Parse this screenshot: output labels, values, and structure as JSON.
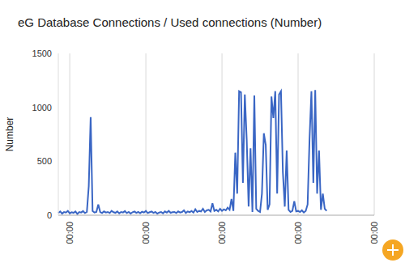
{
  "chart_data": {
    "type": "line",
    "title": "eG Database Connections / Used connections (Number)",
    "y_label": "Number",
    "color": "#3a66c4",
    "grid": true,
    "ylim": [
      0,
      1500
    ],
    "yticks": [
      0,
      500,
      1000,
      1500
    ],
    "categories": [
      null,
      null,
      null,
      null,
      null,
      null,
      "00:00",
      null,
      null,
      null,
      null,
      null,
      null,
      null,
      null,
      null,
      null,
      null,
      null,
      null,
      null,
      null,
      null,
      null,
      null,
      null,
      null,
      null,
      null,
      null,
      null,
      null,
      null,
      null,
      null,
      null,
      null,
      null,
      null,
      null,
      null,
      null,
      null,
      null,
      null,
      null,
      "00:00",
      null,
      null,
      null,
      null,
      null,
      null,
      null,
      null,
      null,
      null,
      null,
      null,
      null,
      null,
      null,
      null,
      null,
      null,
      null,
      null,
      null,
      null,
      null,
      null,
      null,
      null,
      null,
      null,
      null,
      null,
      null,
      null,
      null,
      null,
      null,
      null,
      null,
      null,
      null,
      "00:00",
      null,
      null,
      null,
      null,
      null,
      null,
      null,
      null,
      null,
      null,
      null,
      null,
      null,
      null,
      null,
      null,
      null,
      null,
      null,
      null,
      null,
      null,
      null,
      null,
      null,
      null,
      null,
      null,
      null,
      null,
      null,
      null,
      null,
      null,
      null,
      null,
      null,
      null,
      null,
      "00:00",
      null,
      null,
      null,
      null,
      null,
      null,
      null,
      null,
      null,
      null,
      null,
      null,
      null,
      null,
      null,
      null,
      null,
      null,
      null,
      null,
      null,
      null,
      null,
      null,
      null,
      null,
      null,
      null,
      null,
      null,
      null,
      null,
      null,
      null,
      null,
      null,
      null,
      null,
      null,
      "00:00"
    ],
    "values": [
      20,
      35,
      15,
      30,
      25,
      40,
      18,
      28,
      22,
      35,
      12,
      30,
      25,
      38,
      20,
      30,
      270,
      910,
      40,
      25,
      30,
      100,
      30,
      20,
      35,
      25,
      30,
      20,
      40,
      28,
      22,
      35,
      18,
      30,
      25,
      38,
      20,
      30,
      15,
      28,
      35,
      22,
      30,
      18,
      32,
      25,
      40,
      20,
      28,
      35,
      22,
      30,
      15,
      25,
      30,
      18,
      35,
      25,
      40,
      22,
      28,
      30,
      20,
      35,
      25,
      30,
      45,
      20,
      35,
      28,
      40,
      25,
      55,
      30,
      40,
      35,
      60,
      30,
      45,
      50,
      35,
      110,
      40,
      50,
      35,
      60,
      40,
      55,
      45,
      70,
      50,
      150,
      40,
      580,
      200,
      1150,
      1140,
      300,
      1120,
      700,
      80,
      620,
      30,
      1110,
      60,
      40,
      30,
      200,
      760,
      650,
      50,
      100,
      1100,
      900,
      1150,
      200,
      1120,
      1150,
      400,
      80,
      600,
      50,
      30,
      40,
      130,
      35,
      40,
      30,
      45,
      25,
      40,
      100,
      700,
      1150,
      300,
      1160,
      200,
      600,
      50,
      200,
      60,
      40,
      null,
      null,
      null,
      null,
      null,
      null,
      null,
      null,
      null,
      null,
      null,
      null,
      null,
      null,
      null,
      null,
      null,
      null,
      null,
      null,
      null,
      null,
      null,
      null,
      null
    ]
  }
}
